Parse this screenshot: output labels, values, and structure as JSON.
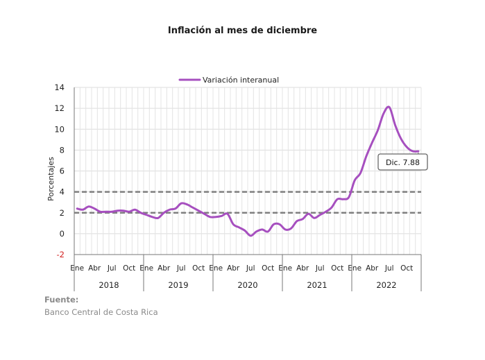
{
  "chart_data": {
    "type": "line",
    "title": "Inflación al mes de diciembre",
    "ylabel": "Porcentajes",
    "ylim": [
      -2,
      14
    ],
    "yticks": [
      14,
      12,
      10,
      8,
      6,
      4,
      2,
      0,
      -2
    ],
    "month_labels": [
      "Ene",
      "Abr",
      "Jul",
      "Oct"
    ],
    "years": [
      "2018",
      "2019",
      "2020",
      "2021",
      "2022"
    ],
    "grid": true,
    "legend_position": "top-center",
    "series": [
      {
        "name": "Variación interanual",
        "color": "#a64fbf",
        "values": [
          2.4,
          2.3,
          2.6,
          2.4,
          2.1,
          2.1,
          2.1,
          2.2,
          2.2,
          2.1,
          2.3,
          2.0,
          1.8,
          1.6,
          1.5,
          2.0,
          2.3,
          2.4,
          2.9,
          2.8,
          2.5,
          2.2,
          1.9,
          1.6,
          1.6,
          1.7,
          1.9,
          0.9,
          0.6,
          0.3,
          -0.2,
          0.2,
          0.4,
          0.2,
          0.9,
          0.9,
          0.4,
          0.5,
          1.2,
          1.4,
          1.9,
          1.5,
          1.8,
          2.1,
          2.5,
          3.3,
          3.3,
          3.5,
          5.1,
          5.8,
          7.4,
          8.7,
          9.9,
          11.5,
          12.1,
          10.4,
          9.1,
          8.3,
          7.9,
          7.88
        ]
      }
    ],
    "reference_lines": [
      {
        "value": 4,
        "style": "dashed",
        "color": "#7f7f7f"
      },
      {
        "value": 2,
        "style": "dashed",
        "color": "#7f7f7f"
      }
    ],
    "annotation": {
      "text": "Dic. 7.88"
    }
  },
  "source": {
    "label": "Fuente:",
    "text": "Banco Central de Costa Rica"
  }
}
